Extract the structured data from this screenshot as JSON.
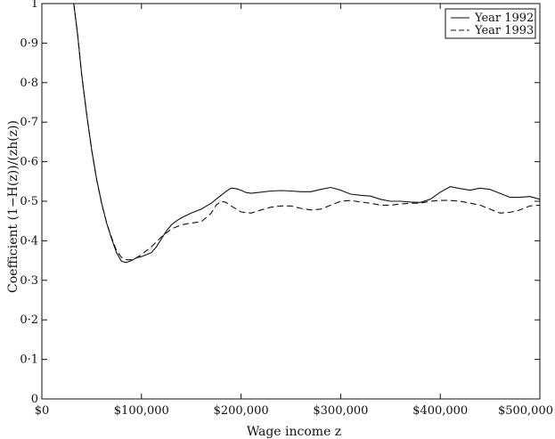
{
  "chart_data": {
    "type": "line",
    "xlabel": "Wage income z",
    "ylabel": "Coefficient (1−H(z))/(zh(z))",
    "xlim": [
      0,
      500000
    ],
    "ylim": [
      0,
      1
    ],
    "x_ticks": [
      {
        "value": 0,
        "label": "$0"
      },
      {
        "value": 100000,
        "label": "$100,000"
      },
      {
        "value": 200000,
        "label": "$200,000"
      },
      {
        "value": 300000,
        "label": "$300,000"
      },
      {
        "value": 400000,
        "label": "$400,000"
      },
      {
        "value": 500000,
        "label": "$500,000"
      }
    ],
    "y_ticks": [
      {
        "value": 0,
        "label": "0"
      },
      {
        "value": 0.1,
        "label": "0·1"
      },
      {
        "value": 0.2,
        "label": "0·2"
      },
      {
        "value": 0.3,
        "label": "0·3"
      },
      {
        "value": 0.4,
        "label": "0·4"
      },
      {
        "value": 0.5,
        "label": "0·5"
      },
      {
        "value": 0.6,
        "label": "0·6"
      },
      {
        "value": 0.7,
        "label": "0·7"
      },
      {
        "value": 0.8,
        "label": "0·8"
      },
      {
        "value": 0.9,
        "label": "0·9"
      },
      {
        "value": 1,
        "label": "1"
      }
    ],
    "grid": false,
    "legend_position": "top-right",
    "series": [
      {
        "name": "Year 1992",
        "style": "solid",
        "x": [
          32000,
          36000,
          40000,
          45000,
          50000,
          55000,
          60000,
          65000,
          70000,
          75000,
          80000,
          85000,
          90000,
          95000,
          100000,
          105000,
          110000,
          115000,
          120000,
          125000,
          130000,
          135000,
          140000,
          150000,
          160000,
          170000,
          180000,
          185000,
          190000,
          195000,
          200000,
          205000,
          210000,
          220000,
          230000,
          240000,
          250000,
          260000,
          270000,
          280000,
          290000,
          300000,
          310000,
          320000,
          330000,
          340000,
          350000,
          360000,
          370000,
          380000,
          390000,
          400000,
          410000,
          420000,
          430000,
          440000,
          450000,
          460000,
          470000,
          480000,
          490000,
          500000
        ],
        "y": [
          1.0,
          0.92,
          0.82,
          0.72,
          0.63,
          0.555,
          0.495,
          0.445,
          0.405,
          0.37,
          0.348,
          0.345,
          0.35,
          0.357,
          0.36,
          0.365,
          0.37,
          0.385,
          0.405,
          0.425,
          0.44,
          0.45,
          0.458,
          0.47,
          0.48,
          0.495,
          0.515,
          0.525,
          0.533,
          0.532,
          0.528,
          0.522,
          0.52,
          0.523,
          0.526,
          0.527,
          0.526,
          0.524,
          0.524,
          0.53,
          0.535,
          0.528,
          0.518,
          0.515,
          0.513,
          0.505,
          0.5,
          0.5,
          0.498,
          0.497,
          0.505,
          0.523,
          0.537,
          0.532,
          0.528,
          0.533,
          0.53,
          0.52,
          0.51,
          0.51,
          0.512,
          0.505
        ]
      },
      {
        "name": "Year 1993",
        "style": "dashed",
        "x": [
          32000,
          36000,
          40000,
          45000,
          50000,
          55000,
          60000,
          65000,
          70000,
          75000,
          80000,
          85000,
          90000,
          95000,
          100000,
          110000,
          120000,
          130000,
          140000,
          150000,
          160000,
          170000,
          175000,
          180000,
          185000,
          190000,
          200000,
          210000,
          220000,
          230000,
          240000,
          250000,
          260000,
          270000,
          280000,
          290000,
          300000,
          310000,
          320000,
          330000,
          340000,
          350000,
          360000,
          370000,
          380000,
          390000,
          400000,
          410000,
          420000,
          430000,
          440000,
          450000,
          460000,
          470000,
          480000,
          490000,
          500000
        ],
        "y": [
          1.0,
          0.92,
          0.82,
          0.72,
          0.63,
          0.555,
          0.495,
          0.445,
          0.408,
          0.375,
          0.358,
          0.352,
          0.352,
          0.357,
          0.365,
          0.385,
          0.41,
          0.43,
          0.44,
          0.445,
          0.448,
          0.47,
          0.49,
          0.5,
          0.497,
          0.488,
          0.473,
          0.47,
          0.478,
          0.485,
          0.488,
          0.488,
          0.482,
          0.478,
          0.48,
          0.49,
          0.5,
          0.502,
          0.498,
          0.495,
          0.49,
          0.49,
          0.493,
          0.495,
          0.495,
          0.5,
          0.502,
          0.502,
          0.5,
          0.495,
          0.49,
          0.48,
          0.47,
          0.472,
          0.478,
          0.488,
          0.49
        ]
      }
    ]
  }
}
